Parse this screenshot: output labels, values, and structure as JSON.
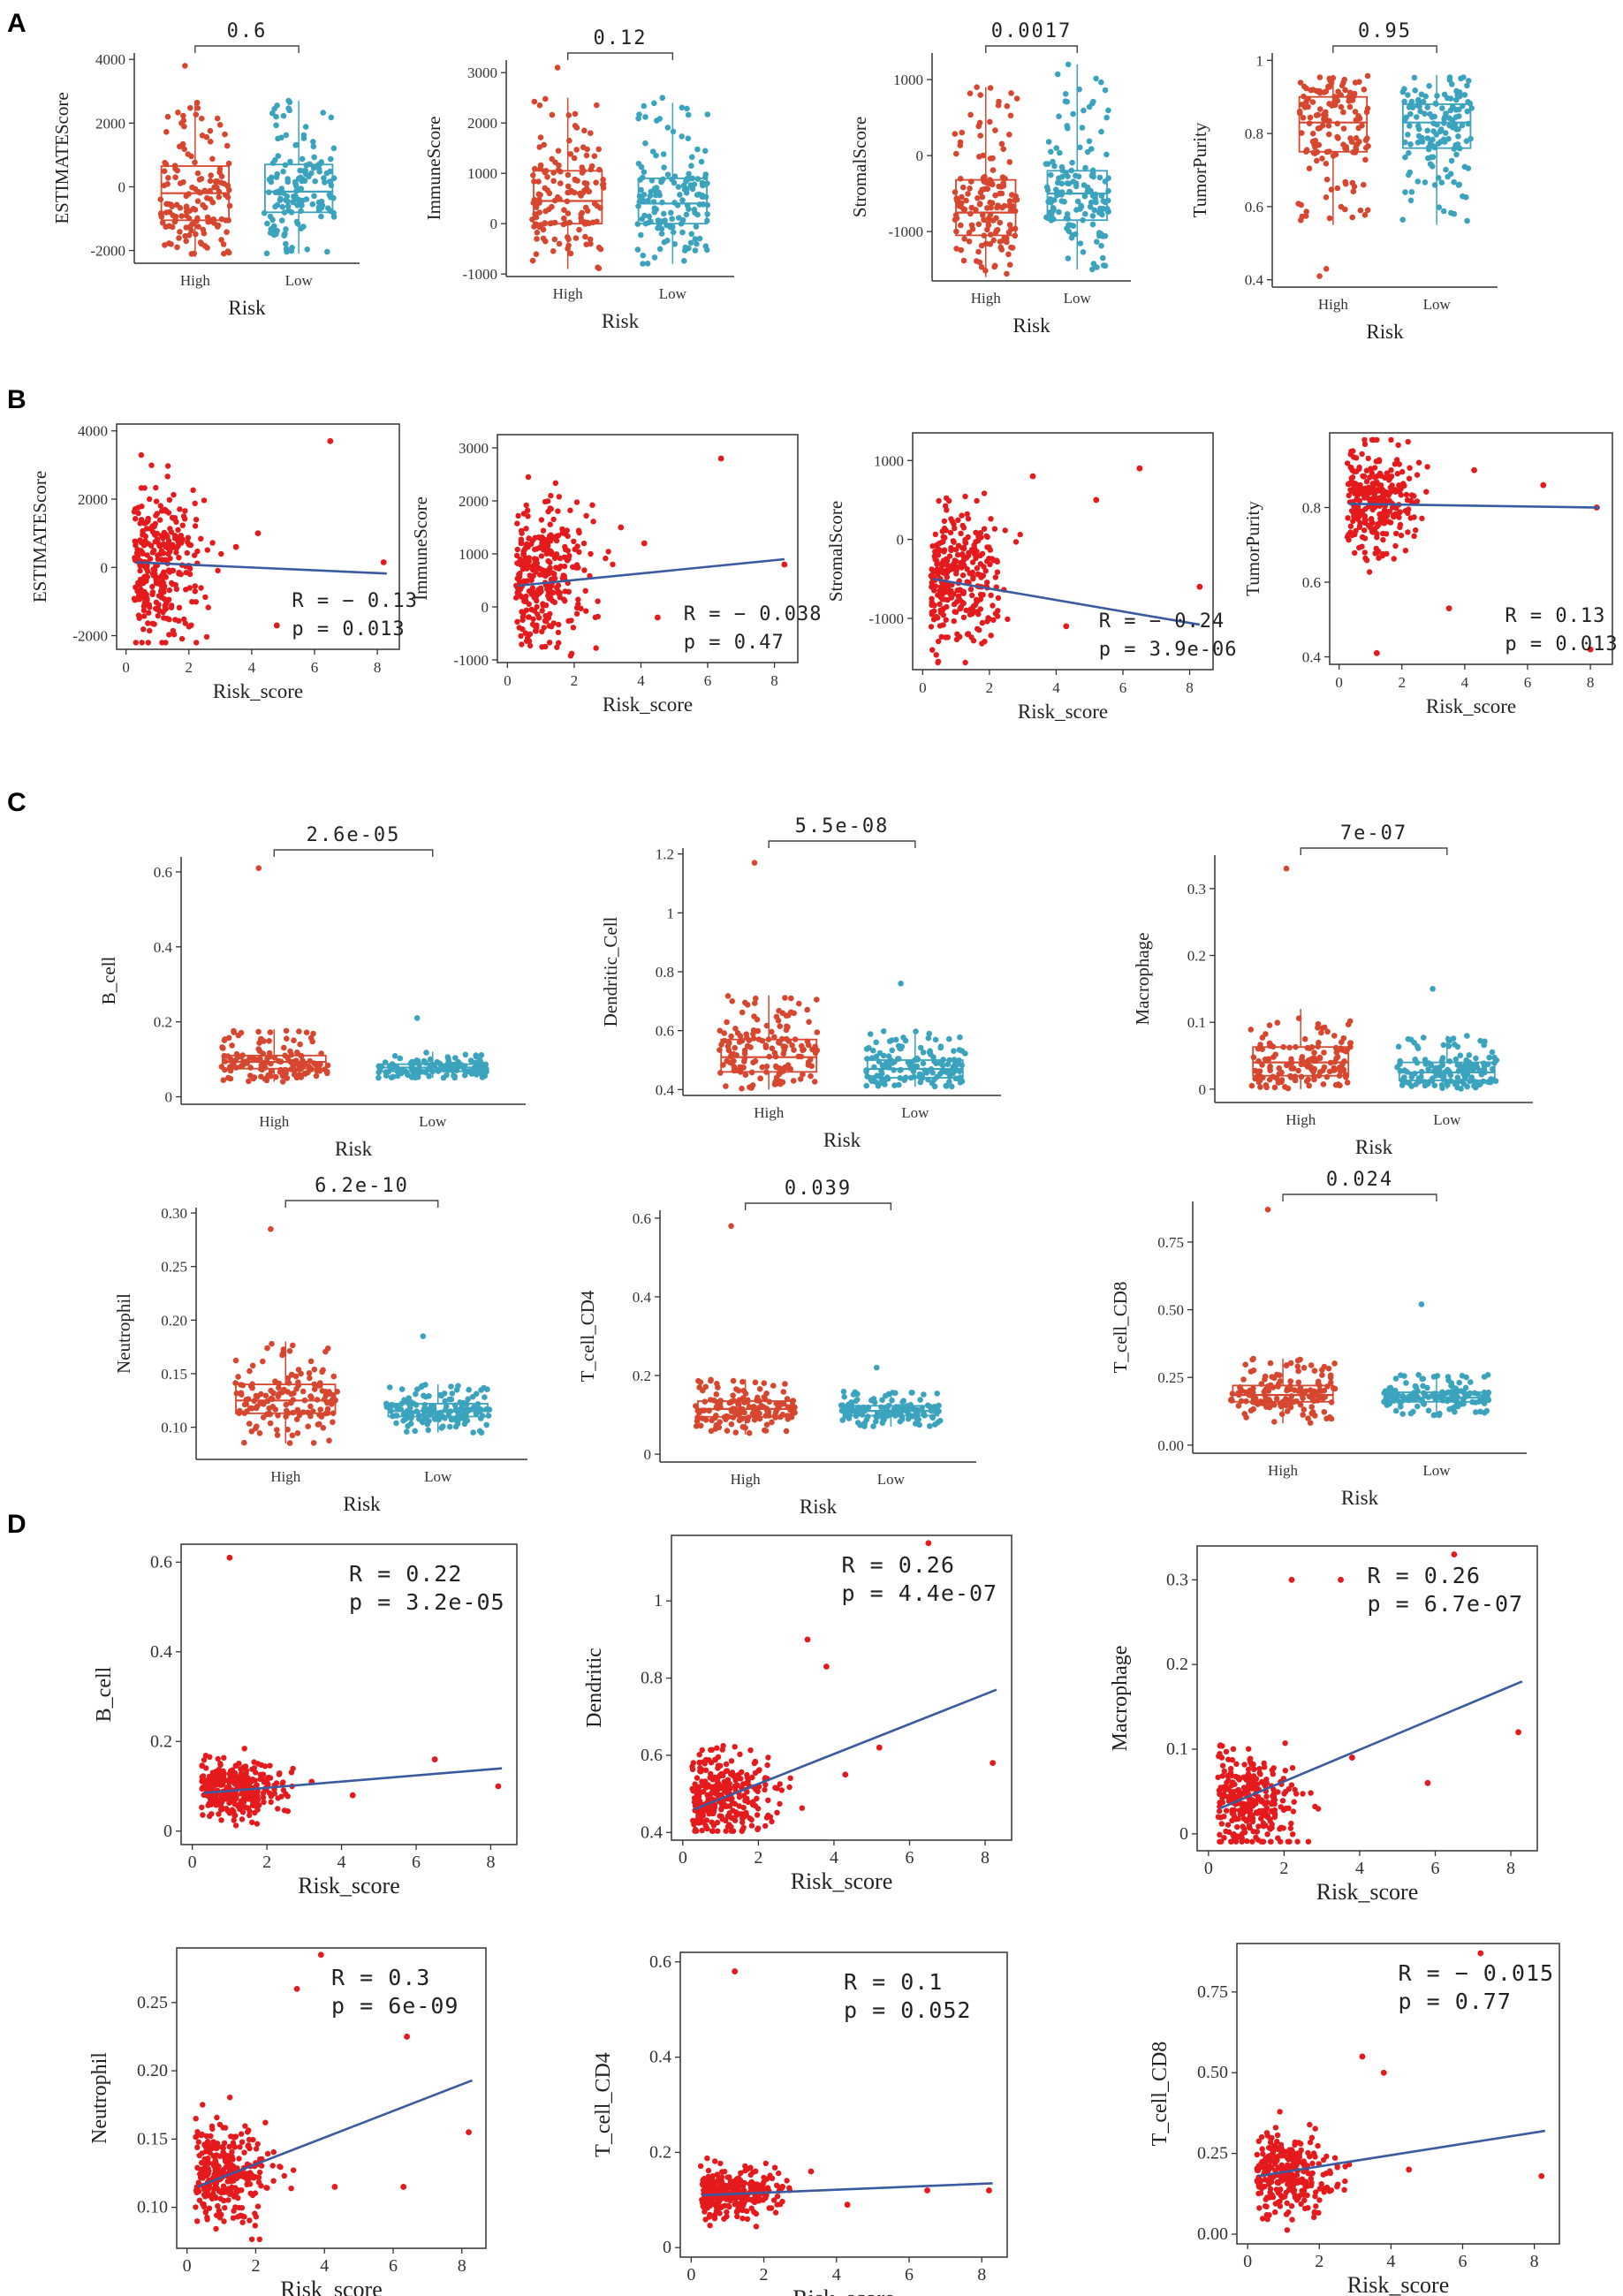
{
  "colors": {
    "high": "#D7472F",
    "low": "#3BA3BD",
    "scatter": "#E41A1C",
    "fit": "#3A5BA0",
    "axis": "#333333"
  },
  "panels": [
    {
      "letter": "A"
    },
    {
      "letter": "B"
    },
    {
      "letter": "C"
    },
    {
      "letter": "D"
    }
  ],
  "chart_data": [
    {
      "id": "A1",
      "panel": "A",
      "type": "box",
      "ylabel": "ESTIMATEScore",
      "xlabel": "Risk",
      "categories": [
        "High",
        "Low"
      ],
      "ylim": [
        -2400,
        4200
      ],
      "yticks": [
        -2000,
        0,
        2000,
        4000
      ],
      "pvalue": "0.6",
      "boxes": [
        {
          "q1": -1050,
          "median": -200,
          "q3": 650,
          "whislo": -2200,
          "whishi": 2700,
          "n": 150,
          "max": 3800
        },
        {
          "q1": -800,
          "median": -150,
          "q3": 700,
          "whislo": -2100,
          "whishi": 2700,
          "n": 150,
          "max": 2700
        }
      ]
    },
    {
      "id": "A2",
      "panel": "A",
      "type": "box",
      "ylabel": "ImmuneScore",
      "xlabel": "Risk",
      "categories": [
        "High",
        "Low"
      ],
      "ylim": [
        -1050,
        3250
      ],
      "yticks": [
        -1000,
        0,
        1000,
        2000,
        3000
      ],
      "pvalue": "0.12",
      "boxes": [
        {
          "q1": 0,
          "median": 450,
          "q3": 1050,
          "whislo": -900,
          "whishi": 2500,
          "n": 150,
          "max": 3100
        },
        {
          "q1": 0,
          "median": 400,
          "q3": 900,
          "whislo": -800,
          "whishi": 2400,
          "n": 150,
          "max": 2500
        }
      ]
    },
    {
      "id": "A3",
      "panel": "A",
      "type": "box",
      "ylabel": "StromalScore",
      "xlabel": "Risk",
      "categories": [
        "High",
        "Low"
      ],
      "ylim": [
        -1650,
        1350
      ],
      "yticks": [
        -1000,
        0,
        1000
      ],
      "pvalue": "0.0017",
      "boxes": [
        {
          "q1": -1050,
          "median": -750,
          "q3": -320,
          "whislo": -1600,
          "whishi": 900,
          "n": 150,
          "max": 900
        },
        {
          "q1": -850,
          "median": -500,
          "q3": -200,
          "whislo": -1500,
          "whishi": 1200,
          "n": 150,
          "max": 1200
        }
      ]
    },
    {
      "id": "A4",
      "panel": "A",
      "type": "box",
      "ylabel": "TumorPurity",
      "xlabel": "Risk",
      "categories": [
        "High",
        "Low"
      ],
      "ylim": [
        0.38,
        1.02
      ],
      "yticks": [
        0.4,
        0.6,
        0.8,
        1.0
      ],
      "pvalue": "0.95",
      "boxes": [
        {
          "q1": 0.75,
          "median": 0.83,
          "q3": 0.9,
          "whislo": 0.55,
          "whishi": 0.96,
          "n": 150,
          "min": 0.41
        },
        {
          "q1": 0.76,
          "median": 0.83,
          "q3": 0.88,
          "whislo": 0.55,
          "whishi": 0.96,
          "n": 150
        }
      ]
    },
    {
      "id": "B1",
      "panel": "B",
      "type": "scatter",
      "ylabel": "ESTIMATEScore",
      "xlabel": "Risk_score",
      "xlim": [
        -0.3,
        8.7
      ],
      "ylim": [
        -2400,
        4200
      ],
      "xticks": [
        0,
        2,
        4,
        6,
        8
      ],
      "yticks": [
        -2000,
        0,
        2000,
        4000
      ],
      "R": "R = − 0.13",
      "p": "p = 0.013",
      "fit": [
        [
          0.3,
          150
        ],
        [
          8.3,
          -180
        ]
      ],
      "center": [
        1.1,
        0
      ],
      "spread": [
        0.6,
        1100
      ],
      "n": 300,
      "outliers": [
        [
          6.5,
          3700
        ],
        [
          8.2,
          150
        ],
        [
          4.8,
          -1700
        ],
        [
          3.5,
          600
        ],
        [
          4.2,
          1000
        ]
      ]
    },
    {
      "id": "B2",
      "panel": "B",
      "type": "scatter",
      "ylabel": "ImmuneScore",
      "xlabel": "Risk_score",
      "xlim": [
        -0.3,
        8.7
      ],
      "ylim": [
        -1050,
        3250
      ],
      "xticks": [
        0,
        2,
        4,
        6,
        8
      ],
      "yticks": [
        -1000,
        0,
        1000,
        2000,
        3000
      ],
      "R": "R = − 0.038",
      "p": "p = 0.47",
      "fit": [
        [
          0.3,
          400
        ],
        [
          8.3,
          900
        ]
      ],
      "center": [
        1.1,
        600
      ],
      "spread": [
        0.6,
        650
      ],
      "n": 300,
      "outliers": [
        [
          6.4,
          2800
        ],
        [
          8.3,
          800
        ],
        [
          4.5,
          -200
        ],
        [
          3.4,
          1500
        ],
        [
          4.1,
          1200
        ]
      ]
    },
    {
      "id": "B3",
      "panel": "B",
      "type": "scatter",
      "ylabel": "StromalScore",
      "xlabel": "Risk_score",
      "xlim": [
        -0.3,
        8.7
      ],
      "ylim": [
        -1650,
        1350
      ],
      "xticks": [
        0,
        2,
        4,
        6,
        8
      ],
      "yticks": [
        -1000,
        0,
        1000
      ],
      "R": "R = − 0.24",
      "p": "p = 3.9e-06",
      "fit": [
        [
          0.3,
          -500
        ],
        [
          8.3,
          -1080
        ]
      ],
      "center": [
        1.1,
        -500
      ],
      "spread": [
        0.6,
        450
      ],
      "n": 300,
      "outliers": [
        [
          6.5,
          900
        ],
        [
          8.3,
          -600
        ],
        [
          3.3,
          800
        ],
        [
          4.3,
          -1100
        ],
        [
          5.2,
          500
        ]
      ]
    },
    {
      "id": "B4",
      "panel": "B",
      "type": "scatter",
      "ylabel": "TumorPurity",
      "xlabel": "Risk_score",
      "xlim": [
        -0.3,
        8.7
      ],
      "ylim": [
        0.38,
        1.0
      ],
      "xticks": [
        0,
        2,
        4,
        6,
        8
      ],
      "yticks": [
        0.4,
        0.6,
        0.8
      ],
      "R": "R = 0.13",
      "p": "p = 0.013",
      "fit": [
        [
          0.3,
          0.81
        ],
        [
          8.3,
          0.8
        ]
      ],
      "center": [
        1.1,
        0.82
      ],
      "spread": [
        0.6,
        0.07
      ],
      "n": 300,
      "outliers": [
        [
          6.5,
          0.86
        ],
        [
          8.2,
          0.8
        ],
        [
          4.3,
          0.9
        ],
        [
          3.5,
          0.53
        ],
        [
          8.0,
          0.42
        ],
        [
          1.2,
          0.41
        ]
      ]
    },
    {
      "id": "C1",
      "panel": "C",
      "type": "box",
      "ylabel": "B_cell",
      "xlabel": "Risk",
      "categories": [
        "High",
        "Low"
      ],
      "ylim": [
        -0.02,
        0.64
      ],
      "yticks": [
        0.0,
        0.2,
        0.4,
        0.6
      ],
      "pvalue": "2.6e-05",
      "boxes": [
        {
          "q1": 0.075,
          "median": 0.093,
          "q3": 0.11,
          "whislo": 0.04,
          "whishi": 0.18,
          "n": 150,
          "max": 0.61
        },
        {
          "q1": 0.068,
          "median": 0.078,
          "q3": 0.087,
          "whislo": 0.05,
          "whishi": 0.12,
          "n": 150,
          "max": 0.21
        }
      ]
    },
    {
      "id": "C2",
      "panel": "C",
      "type": "box",
      "ylabel": "Dendritic_Cell",
      "xlabel": "Risk",
      "categories": [
        "High",
        "Low"
      ],
      "ylim": [
        0.38,
        1.22
      ],
      "yticks": [
        0.4,
        0.6,
        0.8,
        1.0,
        1.2
      ],
      "pvalue": "5.5e-08",
      "boxes": [
        {
          "q1": 0.46,
          "median": 0.51,
          "q3": 0.57,
          "whislo": 0.4,
          "whishi": 0.72,
          "n": 150,
          "max": 1.17
        },
        {
          "q1": 0.44,
          "median": 0.47,
          "q3": 0.5,
          "whislo": 0.41,
          "whishi": 0.6,
          "n": 150,
          "max": 0.76
        }
      ]
    },
    {
      "id": "C3",
      "panel": "C",
      "type": "box",
      "ylabel": "Macrophage",
      "xlabel": "Risk",
      "categories": [
        "High",
        "Low"
      ],
      "ylim": [
        -0.02,
        0.35
      ],
      "yticks": [
        0.0,
        0.1,
        0.2,
        0.3
      ],
      "pvalue": "7e-07",
      "boxes": [
        {
          "q1": 0.02,
          "median": 0.04,
          "q3": 0.063,
          "whislo": 0.0,
          "whishi": 0.12,
          "n": 150,
          "max": 0.33
        },
        {
          "q1": 0.013,
          "median": 0.025,
          "q3": 0.04,
          "whislo": 0.0,
          "whishi": 0.08,
          "n": 150,
          "max": 0.15
        }
      ]
    },
    {
      "id": "C4",
      "panel": "C",
      "type": "box",
      "ylabel": "Neutrophil",
      "xlabel": "Risk",
      "categories": [
        "High",
        "Low"
      ],
      "ylim": [
        0.07,
        0.305
      ],
      "yticks": [
        0.1,
        0.15,
        0.2,
        0.25,
        0.3
      ],
      "yticklabels": [
        "0.10",
        "0.15",
        "0.20",
        "0.25",
        "0.30"
      ],
      "pvalue": "6.2e-10",
      "boxes": [
        {
          "q1": 0.113,
          "median": 0.125,
          "q3": 0.14,
          "whislo": 0.085,
          "whishi": 0.18,
          "n": 150,
          "max": 0.285
        },
        {
          "q1": 0.11,
          "median": 0.115,
          "q3": 0.122,
          "whislo": 0.095,
          "whishi": 0.14,
          "n": 150,
          "max": 0.185
        }
      ]
    },
    {
      "id": "C5",
      "panel": "C",
      "type": "box",
      "ylabel": "T_cell_CD4",
      "xlabel": "Risk",
      "categories": [
        "High",
        "Low"
      ],
      "ylim": [
        -0.02,
        0.62
      ],
      "yticks": [
        0.0,
        0.2,
        0.4,
        0.6
      ],
      "pvalue": "0.039",
      "boxes": [
        {
          "q1": 0.095,
          "median": 0.115,
          "q3": 0.135,
          "whislo": 0.05,
          "whishi": 0.19,
          "n": 150,
          "max": 0.58
        },
        {
          "q1": 0.098,
          "median": 0.11,
          "q3": 0.123,
          "whislo": 0.07,
          "whishi": 0.16,
          "n": 150,
          "max": 0.22
        }
      ]
    },
    {
      "id": "C6",
      "panel": "C",
      "type": "box",
      "ylabel": "T_cell_CD8",
      "xlabel": "Risk",
      "categories": [
        "High",
        "Low"
      ],
      "ylim": [
        -0.03,
        0.9
      ],
      "yticks": [
        0.0,
        0.25,
        0.5,
        0.75
      ],
      "yticklabels": [
        "0.00",
        "0.25",
        "0.50",
        "0.75"
      ],
      "pvalue": "0.024",
      "boxes": [
        {
          "q1": 0.16,
          "median": 0.185,
          "q3": 0.22,
          "whislo": 0.08,
          "whishi": 0.32,
          "n": 150,
          "max": 0.87
        },
        {
          "q1": 0.16,
          "median": 0.175,
          "q3": 0.195,
          "whislo": 0.11,
          "whishi": 0.26,
          "n": 150,
          "max": 0.52
        }
      ]
    },
    {
      "id": "D1",
      "panel": "D",
      "type": "scatter",
      "ylabel": "B_cell",
      "xlabel": "Risk_score",
      "xlim": [
        -0.3,
        8.7
      ],
      "ylim": [
        -0.03,
        0.64
      ],
      "xticks": [
        0,
        2,
        4,
        6,
        8
      ],
      "yticks": [
        0.0,
        0.2,
        0.4,
        0.6
      ],
      "R": "R = 0.22",
      "p": "p = 3.2e-05",
      "fit": [
        [
          0.3,
          0.085
        ],
        [
          8.3,
          0.14
        ]
      ],
      "center": [
        1.1,
        0.09
      ],
      "spread": [
        0.6,
        0.03
      ],
      "n": 300,
      "outliers": [
        [
          1.0,
          0.61
        ],
        [
          6.5,
          0.16
        ],
        [
          8.2,
          0.1
        ],
        [
          4.3,
          0.08
        ],
        [
          3.2,
          0.11
        ]
      ]
    },
    {
      "id": "D2",
      "panel": "D",
      "type": "scatter",
      "ylabel": "Dendritic",
      "xlabel": "Risk_score",
      "xlim": [
        -0.3,
        8.7
      ],
      "ylim": [
        0.38,
        1.17
      ],
      "xticks": [
        0,
        2,
        4,
        6,
        8
      ],
      "yticks": [
        0.4,
        0.6,
        0.8,
        1.0
      ],
      "R": "R = 0.26",
      "p": "p = 4.4e-07",
      "fit": [
        [
          0.3,
          0.46
        ],
        [
          8.3,
          0.77
        ]
      ],
      "center": [
        1.1,
        0.5
      ],
      "spread": [
        0.6,
        0.06
      ],
      "n": 300,
      "outliers": [
        [
          6.5,
          1.15
        ],
        [
          8.2,
          0.58
        ],
        [
          3.8,
          0.83
        ],
        [
          3.3,
          0.9
        ],
        [
          4.3,
          0.55
        ],
        [
          5.2,
          0.62
        ]
      ]
    },
    {
      "id": "D3",
      "panel": "D",
      "type": "scatter",
      "ylabel": "Macrophage",
      "xlabel": "Risk_score",
      "xlim": [
        -0.3,
        8.7
      ],
      "ylim": [
        -0.02,
        0.34
      ],
      "xticks": [
        0,
        2,
        4,
        6,
        8
      ],
      "yticks": [
        0.0,
        0.1,
        0.2,
        0.3
      ],
      "R": "R = 0.26",
      "p": "p = 6.7e-07",
      "fit": [
        [
          0.3,
          0.03
        ],
        [
          8.3,
          0.18
        ]
      ],
      "center": [
        1.1,
        0.04
      ],
      "spread": [
        0.6,
        0.03
      ],
      "n": 300,
      "outliers": [
        [
          6.5,
          0.33
        ],
        [
          8.2,
          0.12
        ],
        [
          5.8,
          0.06
        ],
        [
          3.8,
          0.09
        ],
        [
          2.2,
          0.3
        ],
        [
          3.5,
          0.3
        ]
      ]
    },
    {
      "id": "D4",
      "panel": "D",
      "type": "scatter",
      "ylabel": "Neutrophil",
      "xlabel": "Risk_score",
      "xlim": [
        -0.3,
        8.7
      ],
      "ylim": [
        0.07,
        0.29
      ],
      "xticks": [
        0,
        2,
        4,
        6,
        8
      ],
      "yticks": [
        0.1,
        0.15,
        0.2,
        0.25
      ],
      "yticklabels": [
        "0.10",
        "0.15",
        "0.20",
        "0.25"
      ],
      "R": "R = 0.3",
      "p": "p = 6e-09",
      "fit": [
        [
          0.3,
          0.115
        ],
        [
          8.3,
          0.193
        ]
      ],
      "center": [
        1.1,
        0.125
      ],
      "spread": [
        0.6,
        0.018
      ],
      "n": 300,
      "outliers": [
        [
          3.9,
          0.285
        ],
        [
          3.2,
          0.26
        ],
        [
          6.4,
          0.225
        ],
        [
          8.2,
          0.155
        ],
        [
          6.3,
          0.115
        ],
        [
          4.3,
          0.115
        ]
      ]
    },
    {
      "id": "D5",
      "panel": "D",
      "type": "scatter",
      "ylabel": "T_cell_CD4",
      "xlabel": "Risk_score",
      "xlim": [
        -0.3,
        8.7
      ],
      "ylim": [
        -0.02,
        0.62
      ],
      "xticks": [
        0,
        2,
        4,
        6,
        8
      ],
      "yticks": [
        0.0,
        0.2,
        0.4,
        0.6
      ],
      "R": "R = 0.1",
      "p": "p = 0.052",
      "fit": [
        [
          0.3,
          0.11
        ],
        [
          8.3,
          0.135
        ]
      ],
      "center": [
        1.1,
        0.115
      ],
      "spread": [
        0.6,
        0.025
      ],
      "n": 300,
      "outliers": [
        [
          1.2,
          0.58
        ],
        [
          6.5,
          0.12
        ],
        [
          8.2,
          0.12
        ],
        [
          4.3,
          0.09
        ],
        [
          3.3,
          0.16
        ]
      ]
    },
    {
      "id": "D6",
      "panel": "D",
      "type": "scatter",
      "ylabel": "T_cell_CD8",
      "xlabel": "Risk_score",
      "xlim": [
        -0.3,
        8.7
      ],
      "ylim": [
        -0.03,
        0.9
      ],
      "xticks": [
        0,
        2,
        4,
        6,
        8
      ],
      "yticks": [
        0.0,
        0.25,
        0.5,
        0.75
      ],
      "yticklabels": [
        "0.00",
        "0.25",
        "0.50",
        "0.75"
      ],
      "R": "R = − 0.015",
      "p": "p = 0.77",
      "fit": [
        [
          0.3,
          0.18
        ],
        [
          8.3,
          0.32
        ]
      ],
      "center": [
        1.1,
        0.19
      ],
      "spread": [
        0.6,
        0.06
      ],
      "n": 300,
      "outliers": [
        [
          6.5,
          0.87
        ],
        [
          8.2,
          0.18
        ],
        [
          3.8,
          0.5
        ],
        [
          4.5,
          0.2
        ],
        [
          3.2,
          0.55
        ]
      ]
    }
  ]
}
